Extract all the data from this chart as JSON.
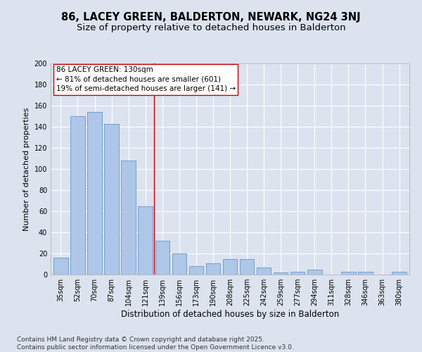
{
  "title": "86, LACEY GREEN, BALDERTON, NEWARK, NG24 3NJ",
  "subtitle": "Size of property relative to detached houses in Balderton",
  "xlabel": "Distribution of detached houses by size in Balderton",
  "ylabel": "Number of detached properties",
  "categories": [
    "35sqm",
    "52sqm",
    "70sqm",
    "87sqm",
    "104sqm",
    "121sqm",
    "139sqm",
    "156sqm",
    "173sqm",
    "190sqm",
    "208sqm",
    "225sqm",
    "242sqm",
    "259sqm",
    "277sqm",
    "294sqm",
    "311sqm",
    "328sqm",
    "346sqm",
    "363sqm",
    "380sqm"
  ],
  "values": [
    16,
    150,
    154,
    143,
    108,
    65,
    32,
    20,
    8,
    11,
    15,
    15,
    7,
    2,
    3,
    5,
    0,
    3,
    3,
    0,
    3
  ],
  "bar_color": "#aec6e8",
  "bar_edge_color": "#6699cc",
  "background_color": "#dce3ef",
  "grid_color": "#ffffff",
  "vline_x": 5.5,
  "vline_color": "#cc0000",
  "annotation_text": "86 LACEY GREEN: 130sqm\n← 81% of detached houses are smaller (601)\n19% of semi-detached houses are larger (141) →",
  "annotation_box_color": "#ffffff",
  "annotation_box_edge": "#cc0000",
  "footer_text": "Contains HM Land Registry data © Crown copyright and database right 2025.\nContains public sector information licensed under the Open Government Licence v3.0.",
  "ylim": [
    0,
    200
  ],
  "yticks": [
    0,
    20,
    40,
    60,
    80,
    100,
    120,
    140,
    160,
    180,
    200
  ],
  "title_fontsize": 10.5,
  "subtitle_fontsize": 9.5,
  "xlabel_fontsize": 8.5,
  "ylabel_fontsize": 8,
  "tick_fontsize": 7,
  "annotation_fontsize": 7.5,
  "footer_fontsize": 6.5
}
